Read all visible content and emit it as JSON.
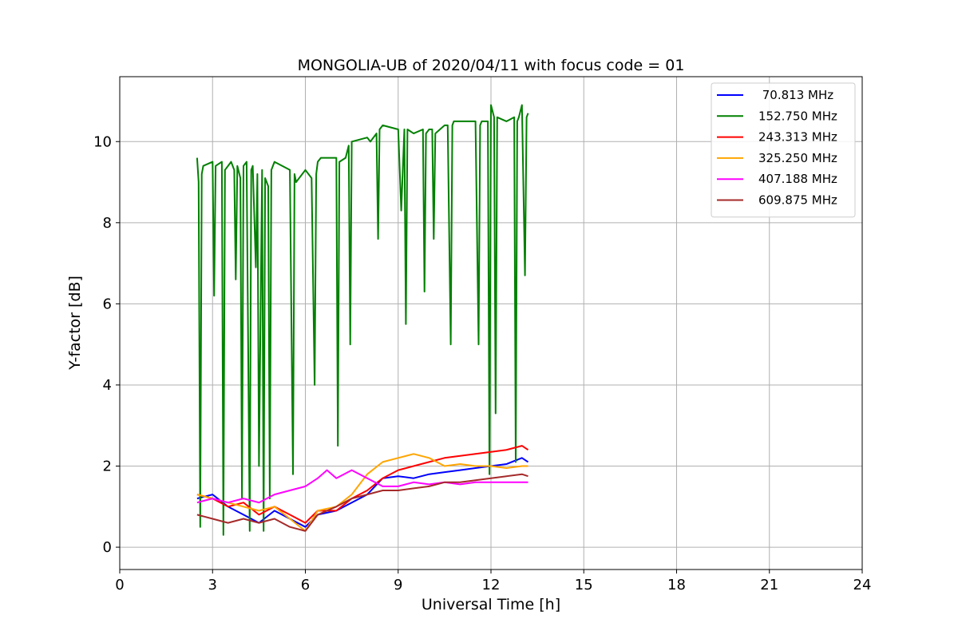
{
  "chart_data": {
    "type": "line",
    "title": "MONGOLIA-UB of 2020/04/11 with focus code = 01",
    "xlabel": "Universal Time [h]",
    "ylabel": "Y-factor [dB]",
    "xlim": [
      0,
      24
    ],
    "ylim": [
      -0.55,
      11.6
    ],
    "xticks": [
      0,
      3,
      6,
      9,
      12,
      15,
      18,
      21,
      24
    ],
    "xtick_labels": [
      "0",
      "3",
      "6",
      "9",
      "12",
      "15",
      "18",
      "21",
      "24"
    ],
    "yticks": [
      0,
      2,
      4,
      6,
      8,
      10
    ],
    "ytick_labels": [
      "0",
      "2",
      "4",
      "6",
      "8",
      "10"
    ],
    "grid": true,
    "legend_position": "top-right",
    "series": [
      {
        "name": " 70.813 MHz",
        "color": "#0000ff",
        "x": [
          2.5,
          3.0,
          3.5,
          4.0,
          4.5,
          5.0,
          5.5,
          6.0,
          6.4,
          7.0,
          7.5,
          8.0,
          8.5,
          9.0,
          9.5,
          10.0,
          10.5,
          11.0,
          11.5,
          12.0,
          12.5,
          13.0,
          13.2
        ],
        "y": [
          1.2,
          1.3,
          1.0,
          0.8,
          0.6,
          0.9,
          0.7,
          0.5,
          0.8,
          0.9,
          1.1,
          1.3,
          1.7,
          1.75,
          1.7,
          1.8,
          1.85,
          1.9,
          1.95,
          2.0,
          2.05,
          2.2,
          2.1
        ]
      },
      {
        "name": "152.750 MHz",
        "color": "#008000",
        "x": [
          2.5,
          2.55,
          2.6,
          2.65,
          2.7,
          3.0,
          3.05,
          3.1,
          3.3,
          3.35,
          3.4,
          3.6,
          3.7,
          3.75,
          3.8,
          3.9,
          3.95,
          4.0,
          4.1,
          4.2,
          4.25,
          4.3,
          4.4,
          4.45,
          4.5,
          4.6,
          4.65,
          4.7,
          4.8,
          4.85,
          4.9,
          5.0,
          5.5,
          5.6,
          5.65,
          5.7,
          6.0,
          6.2,
          6.3,
          6.35,
          6.4,
          6.5,
          7.0,
          7.05,
          7.1,
          7.3,
          7.4,
          7.45,
          7.5,
          8.0,
          8.1,
          8.3,
          8.35,
          8.4,
          8.5,
          9.0,
          9.1,
          9.2,
          9.25,
          9.3,
          9.5,
          9.8,
          9.85,
          9.9,
          10.0,
          10.1,
          10.15,
          10.2,
          10.5,
          10.6,
          10.7,
          10.75,
          10.8,
          11.0,
          11.5,
          11.6,
          11.65,
          11.7,
          11.9,
          11.95,
          12.0,
          12.1,
          12.15,
          12.2,
          12.5,
          12.75,
          12.8,
          12.85,
          12.9,
          13.0,
          13.1,
          13.15,
          13.2
        ],
        "y": [
          9.6,
          9.0,
          0.5,
          9.2,
          9.4,
          9.5,
          6.2,
          9.4,
          9.5,
          0.3,
          9.3,
          9.5,
          9.3,
          6.6,
          9.4,
          9.1,
          1.2,
          9.4,
          9.5,
          0.4,
          9.3,
          9.4,
          6.9,
          9.2,
          2.0,
          9.3,
          0.4,
          9.1,
          8.9,
          1.2,
          9.3,
          9.5,
          9.3,
          1.8,
          9.2,
          9.0,
          9.3,
          9.1,
          4.0,
          9.2,
          9.5,
          9.6,
          9.6,
          2.5,
          9.5,
          9.6,
          9.9,
          5.0,
          10.0,
          10.1,
          10.0,
          10.2,
          7.6,
          10.3,
          10.4,
          10.3,
          8.3,
          10.3,
          5.5,
          10.3,
          10.2,
          10.3,
          6.3,
          10.2,
          10.3,
          10.3,
          7.6,
          10.2,
          10.4,
          10.4,
          5.0,
          10.4,
          10.5,
          10.5,
          10.5,
          5.0,
          10.4,
          10.5,
          10.5,
          1.8,
          10.9,
          10.6,
          3.3,
          10.6,
          10.5,
          10.6,
          2.1,
          10.5,
          10.6,
          10.9,
          6.7,
          10.6,
          10.7
        ]
      },
      {
        "name": "243.313 MHz",
        "color": "#ff0000",
        "x": [
          2.5,
          3.0,
          3.5,
          4.0,
          4.5,
          5.0,
          5.5,
          6.0,
          6.4,
          7.0,
          7.5,
          8.0,
          8.5,
          9.0,
          9.5,
          10.0,
          10.5,
          11.0,
          11.5,
          12.0,
          12.5,
          13.0,
          13.2
        ],
        "y": [
          1.3,
          1.2,
          1.0,
          1.1,
          0.8,
          1.0,
          0.8,
          0.6,
          0.9,
          0.9,
          1.2,
          1.4,
          1.7,
          1.9,
          2.0,
          2.1,
          2.2,
          2.25,
          2.3,
          2.35,
          2.4,
          2.5,
          2.4
        ]
      },
      {
        "name": "325.250 MHz",
        "color": "#ffa500",
        "x": [
          2.5,
          3.0,
          3.5,
          4.0,
          4.5,
          5.0,
          5.5,
          6.0,
          6.4,
          7.0,
          7.5,
          8.0,
          8.5,
          9.0,
          9.5,
          10.0,
          10.5,
          11.0,
          11.5,
          12.0,
          12.5,
          13.0,
          13.2
        ],
        "y": [
          1.3,
          1.2,
          1.1,
          1.0,
          0.9,
          1.0,
          0.7,
          0.4,
          0.9,
          1.0,
          1.3,
          1.8,
          2.1,
          2.2,
          2.3,
          2.2,
          2.0,
          2.05,
          2.0,
          2.0,
          1.95,
          2.0,
          2.0
        ]
      },
      {
        "name": "407.188 MHz",
        "color": "#ff00ff",
        "x": [
          2.5,
          3.0,
          3.5,
          4.0,
          4.5,
          5.0,
          5.5,
          6.0,
          6.4,
          6.7,
          7.0,
          7.5,
          8.0,
          8.5,
          9.0,
          9.5,
          10.0,
          10.5,
          11.0,
          11.5,
          12.0,
          12.5,
          13.0,
          13.2
        ],
        "y": [
          1.1,
          1.2,
          1.1,
          1.2,
          1.1,
          1.3,
          1.4,
          1.5,
          1.7,
          1.9,
          1.7,
          1.9,
          1.7,
          1.5,
          1.5,
          1.6,
          1.55,
          1.6,
          1.55,
          1.6,
          1.6,
          1.6,
          1.6,
          1.6
        ]
      },
      {
        "name": "609.875 MHz",
        "color": "#a52a2a",
        "x": [
          2.5,
          3.0,
          3.5,
          4.0,
          4.5,
          5.0,
          5.5,
          6.0,
          6.4,
          7.0,
          7.5,
          8.0,
          8.5,
          9.0,
          9.5,
          10.0,
          10.5,
          11.0,
          11.5,
          12.0,
          12.5,
          13.0,
          13.2
        ],
        "y": [
          0.8,
          0.7,
          0.6,
          0.7,
          0.6,
          0.7,
          0.5,
          0.4,
          0.8,
          1.0,
          1.2,
          1.3,
          1.4,
          1.4,
          1.45,
          1.5,
          1.6,
          1.6,
          1.65,
          1.7,
          1.75,
          1.8,
          1.75
        ]
      }
    ]
  }
}
